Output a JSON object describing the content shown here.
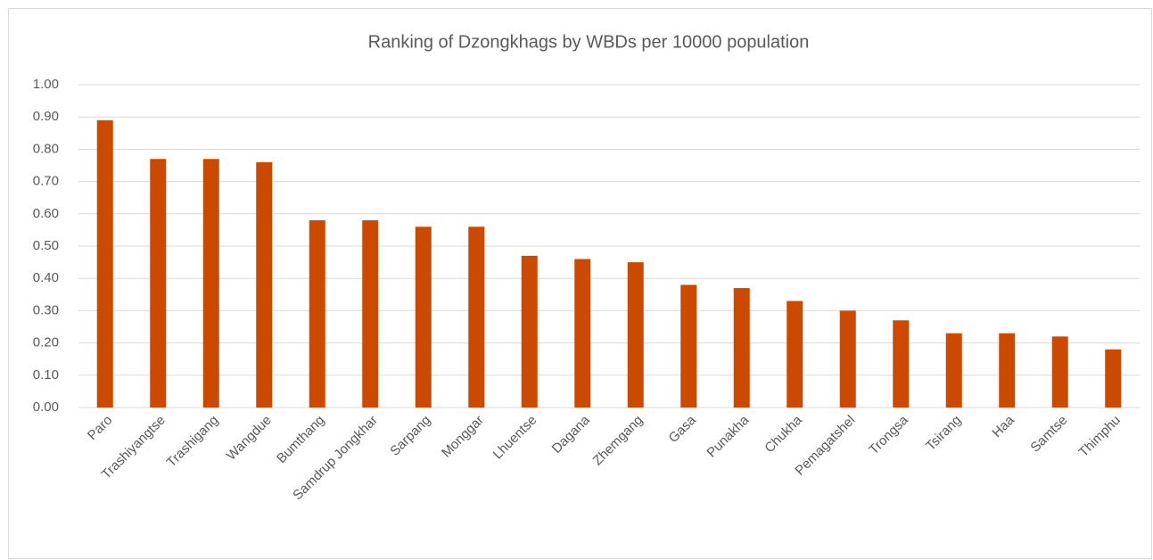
{
  "chart_data": {
    "type": "bar",
    "title": "Ranking of Dzongkhags by WBDs per 10000 population",
    "categories": [
      "Paro",
      "Trashiyangtse",
      "Trashigang",
      "Wangdue",
      "Bumthang",
      "Samdrup Jongkhar",
      "Sarpang",
      "Monggar",
      "Lhuentse",
      "Dagana",
      "Zhemgang",
      "Gasa",
      "Punakha",
      "Chukha",
      "Pemagatshel",
      "Trongsa",
      "Tsirang",
      "Haa",
      "Samtse",
      "Thimphu"
    ],
    "values": [
      0.89,
      0.77,
      0.77,
      0.76,
      0.58,
      0.58,
      0.56,
      0.56,
      0.47,
      0.46,
      0.45,
      0.38,
      0.37,
      0.33,
      0.3,
      0.27,
      0.23,
      0.23,
      0.22,
      0.18
    ],
    "color": "#cc4a00",
    "ylim": [
      0,
      1
    ],
    "yticks": [
      {
        "value": 0,
        "label": "0.00"
      },
      {
        "value": 0.1,
        "label": "0.10"
      },
      {
        "value": 0.2,
        "label": "0.20"
      },
      {
        "value": 0.3,
        "label": "0.30"
      },
      {
        "value": 0.4,
        "label": "0.40"
      },
      {
        "value": 0.5,
        "label": "0.50"
      },
      {
        "value": 0.6,
        "label": "0.60"
      },
      {
        "value": 0.7,
        "label": "0.70"
      },
      {
        "value": 0.8,
        "label": "0.80"
      },
      {
        "value": 0.9,
        "label": "0.90"
      },
      {
        "value": 1,
        "label": "1.00"
      }
    ],
    "grid": true
  }
}
